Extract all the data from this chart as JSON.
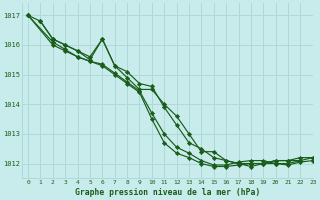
{
  "title": "Graphe pression niveau de la mer (hPa)",
  "bg_color": "#c8ecec",
  "grid_color": "#b0d8d8",
  "line_color": "#1a5c1a",
  "marker_color": "#1a5c1a",
  "xlim": [
    -0.5,
    23
  ],
  "ylim": [
    1011.5,
    1017.4
  ],
  "yticks": [
    1012,
    1013,
    1014,
    1015,
    1016,
    1017
  ],
  "xticks": [
    0,
    1,
    2,
    3,
    4,
    5,
    6,
    7,
    8,
    9,
    10,
    11,
    12,
    13,
    14,
    15,
    16,
    17,
    18,
    19,
    20,
    21,
    22,
    23
  ],
  "series": [
    {
      "x": [
        0,
        1,
        2,
        3,
        4,
        5,
        6,
        7,
        8,
        9,
        10,
        11,
        12,
        13,
        14,
        15,
        16,
        17,
        18,
        19,
        20,
        21,
        22
      ],
      "y": [
        1017.0,
        1016.8,
        1016.2,
        1016.0,
        1015.8,
        1015.5,
        1016.2,
        1015.3,
        1014.9,
        1014.5,
        1014.5,
        1014.0,
        1013.6,
        1013.0,
        1012.4,
        1012.4,
        1012.1,
        1012.0,
        1011.9,
        1012.0,
        1012.1,
        1012.1,
        1012.1
      ]
    },
    {
      "x": [
        1,
        2,
        3,
        4,
        5,
        6,
        7,
        8,
        9,
        10,
        11,
        12,
        13,
        14,
        15,
        16,
        17,
        18,
        19,
        20,
        21,
        22,
        23
      ],
      "y": [
        1016.8,
        1016.2,
        1016.0,
        1015.8,
        1015.6,
        1016.2,
        1015.3,
        1015.1,
        1014.7,
        1014.6,
        1013.9,
        1013.3,
        1012.7,
        1012.5,
        1012.2,
        1012.1,
        1012.0,
        1012.0,
        1012.0,
        1012.1,
        1012.1,
        1012.2,
        1012.2
      ]
    },
    {
      "x": [
        0,
        2,
        3,
        4,
        5,
        6,
        7,
        8,
        9,
        10,
        11,
        12,
        13,
        14,
        15,
        16,
        17,
        18,
        19,
        20,
        21,
        22,
        23
      ],
      "y": [
        1017.0,
        1016.1,
        1015.85,
        1015.6,
        1015.45,
        1015.35,
        1015.05,
        1014.75,
        1014.45,
        1013.7,
        1013.0,
        1012.55,
        1012.35,
        1012.1,
        1011.95,
        1011.95,
        1012.05,
        1012.1,
        1012.1,
        1012.0,
        1012.0,
        1012.1,
        1012.2
      ]
    },
    {
      "x": [
        0,
        2,
        3,
        4,
        5,
        6,
        7,
        8,
        9,
        10,
        11,
        12,
        13,
        14,
        15,
        16,
        17,
        18,
        20,
        21,
        22,
        23
      ],
      "y": [
        1017.0,
        1016.0,
        1015.8,
        1015.6,
        1015.45,
        1015.3,
        1015.0,
        1014.7,
        1014.4,
        1013.5,
        1012.7,
        1012.35,
        1012.2,
        1012.0,
        1011.9,
        1011.9,
        1011.95,
        1012.0,
        1012.0,
        1011.95,
        1012.05,
        1012.1
      ]
    }
  ]
}
